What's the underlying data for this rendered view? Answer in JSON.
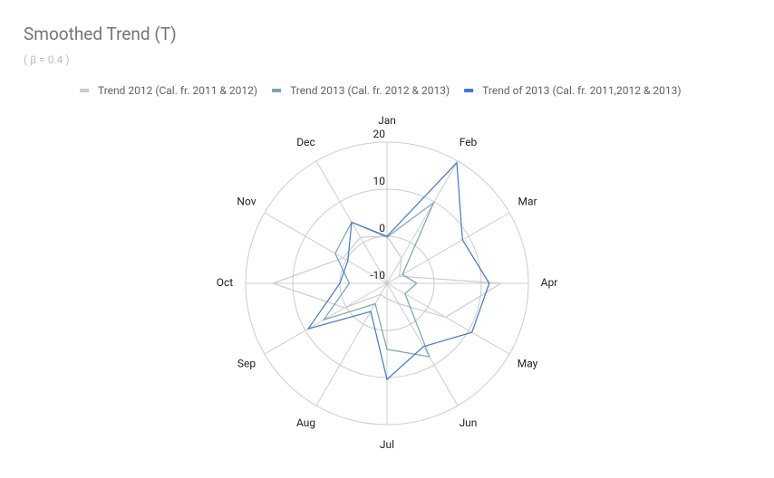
{
  "chart_data": {
    "type": "radar",
    "title": "Smoothed Trend (T)",
    "subtitle": "( β = 0.4 )",
    "categories": [
      "Jan",
      "Feb",
      "Mar",
      "Apr",
      "May",
      "Jun",
      "Jul",
      "Aug",
      "Sep",
      "Oct",
      "Nov",
      "Dec"
    ],
    "ylim": [
      -10,
      20
    ],
    "yticks": [
      -10,
      0,
      10,
      20
    ],
    "grid": true,
    "legend": "top",
    "series": [
      {
        "name": "Trend 2012 (Cal. fr. 2011 & 2012)",
        "color": "#cccccc",
        "values": [
          0,
          -3.8,
          -7,
          14.2,
          4.4,
          -5,
          -6.7,
          -7.3,
          0.4,
          14.2,
          0.8,
          1.3
        ]
      },
      {
        "name": "Trend 2013 (Cal. fr. 2012 & 2013)",
        "color": "#76a5af",
        "values": [
          -0.2,
          9.8,
          -6.2,
          -3.7,
          -5.6,
          8,
          4,
          -5,
          5.5,
          -2,
          2.7,
          5
        ]
      },
      {
        "name": "Trend of 2013 (Cal. fr. 2011,2012 & 2013)",
        "color": "#3c78d8",
        "values": [
          0,
          19.6,
          8.5,
          11.7,
          10.8,
          5.5,
          10.4,
          -3.1,
          9.3,
          0,
          -0.4,
          5
        ]
      }
    ]
  }
}
